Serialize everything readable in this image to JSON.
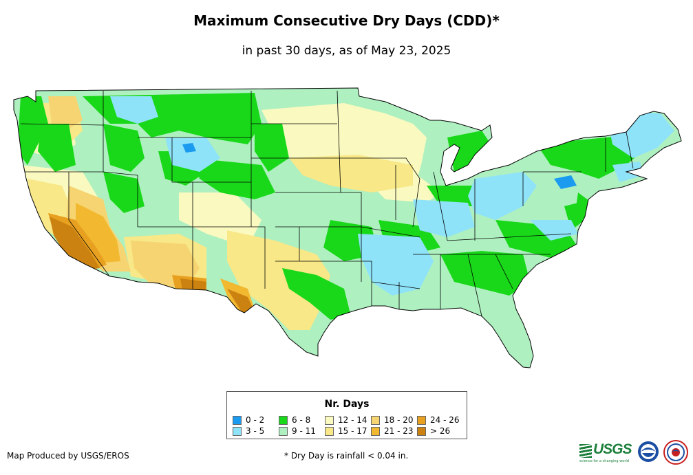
{
  "title": "Maximum Consecutive Dry Days (CDD)*",
  "subtitle": "in past 30 days, as of May 23, 2025",
  "legend": {
    "title": "Nr. Days",
    "items": [
      {
        "label": "0 - 2",
        "color": "#1a9bf0"
      },
      {
        "label": "3 - 5",
        "color": "#8fe3f8"
      },
      {
        "label": "6 - 8",
        "color": "#19d819"
      },
      {
        "label": "9 - 11",
        "color": "#aef0c0"
      },
      {
        "label": "12 - 14",
        "color": "#fafac0"
      },
      {
        "label": "15 - 17",
        "color": "#f8e888"
      },
      {
        "label": "18 - 20",
        "color": "#f6d472"
      },
      {
        "label": "21 - 23",
        "color": "#f2b830"
      },
      {
        "label": "24 - 26",
        "color": "#e8a020"
      },
      {
        "label": "> 26",
        "color": "#cc8210"
      }
    ]
  },
  "credit": "Map Produced by USGS/EROS",
  "footnote": "* Dry Day is rainfall < 0.04 in.",
  "logos": {
    "usgs": "USGS",
    "usgs_tagline": "science for a changing world",
    "noaa": "NOAA"
  }
}
